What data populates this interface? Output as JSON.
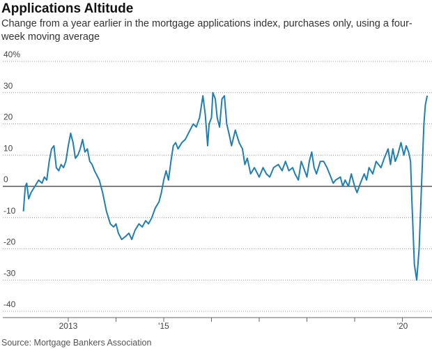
{
  "chart_data": {
    "type": "line",
    "title": "Applications Altitude",
    "subtitle": "Change from a year earlier in the mortgage applications index, purchases only, using a four-week moving average",
    "source": "Source: Mortgage Bankers Association",
    "x": [
      2012.06,
      2012.1,
      2012.13,
      2012.17,
      2012.22,
      2012.3,
      2012.38,
      2012.45,
      2012.5,
      2012.55,
      2012.6,
      2012.65,
      2012.7,
      2012.75,
      2012.8,
      2012.85,
      2012.9,
      2012.95,
      2013.0,
      2013.05,
      2013.1,
      2013.15,
      2013.2,
      2013.25,
      2013.3,
      2013.35,
      2013.4,
      2013.45,
      2013.5,
      2013.55,
      2013.65,
      2013.72,
      2013.8,
      2013.88,
      2013.95,
      2014.0,
      2014.05,
      2014.12,
      2014.2,
      2014.27,
      2014.33,
      2014.4,
      2014.48,
      2014.55,
      2014.62,
      2014.68,
      2014.75,
      2014.82,
      2014.9,
      2014.95,
      2015.0,
      2015.05,
      2015.1,
      2015.15,
      2015.2,
      2015.25,
      2015.3,
      2015.38,
      2015.45,
      2015.55,
      2015.62,
      2015.68,
      2015.75,
      2015.82,
      2015.87,
      2015.92,
      2015.95,
      2016.0,
      2016.03,
      2016.08,
      2016.12,
      2016.17,
      2016.22,
      2016.27,
      2016.32,
      2016.38,
      2016.42,
      2016.5,
      2016.58,
      2016.65,
      2016.7,
      2016.75,
      2016.82,
      2016.9,
      2017.0,
      2017.08,
      2017.15,
      2017.22,
      2017.3,
      2017.4,
      2017.48,
      2017.55,
      2017.62,
      2017.7,
      2017.75,
      2017.82,
      2017.88,
      2017.93,
      2018.0,
      2018.05,
      2018.1,
      2018.15,
      2018.2,
      2018.28,
      2018.35,
      2018.42,
      2018.5,
      2018.55,
      2018.6,
      2018.7,
      2018.75,
      2018.8,
      2018.87,
      2018.93,
      2019.0,
      2019.05,
      2019.12,
      2019.2,
      2019.25,
      2019.3,
      2019.38,
      2019.45,
      2019.5,
      2019.55,
      2019.62,
      2019.7,
      2019.75,
      2019.8,
      2019.85,
      2019.9,
      2019.97,
      2020.03,
      2020.08,
      2020.13,
      2020.17,
      2020.2,
      2020.25,
      2020.3,
      2020.35,
      2020.4,
      2020.45,
      2020.48,
      2020.52
    ],
    "series": [
      {
        "color": "#1f7fb0",
        "values": [
          -8,
          0,
          1,
          -4,
          -2,
          0,
          2,
          1,
          3,
          2,
          8,
          12,
          13,
          6,
          5,
          7,
          6,
          8,
          13,
          17,
          14,
          9,
          10,
          12,
          15,
          11,
          12,
          8,
          7,
          5,
          2,
          -2,
          -8,
          -12,
          -13,
          -12,
          -15,
          -17,
          -16,
          -15,
          -17,
          -14,
          -12,
          -13,
          -11,
          -12,
          -10,
          -7,
          -5,
          -2,
          2,
          5,
          2,
          8,
          13,
          14,
          12,
          14,
          15,
          18,
          20,
          19,
          22,
          29,
          23,
          13,
          20,
          22,
          30,
          28,
          22,
          19,
          28,
          29,
          20,
          16,
          13,
          18,
          14,
          12,
          7,
          9,
          4,
          6,
          3,
          6,
          4,
          3,
          6,
          7,
          5,
          8,
          5,
          6,
          4,
          2,
          8,
          6,
          3,
          8,
          11,
          6,
          4,
          8,
          8,
          6,
          3,
          1,
          2,
          3,
          0,
          2,
          0,
          4,
          0,
          -2,
          1,
          4,
          2,
          6,
          4,
          8,
          7,
          6,
          9,
          12,
          7,
          12,
          8,
          10,
          14,
          10,
          13,
          11,
          8,
          -5,
          -25,
          -30,
          -20,
          0,
          20,
          26,
          29
        ]
      }
    ],
    "xlim": [
      2011.57,
      2020.62
    ],
    "xticks": [
      {
        "value": 2013,
        "label": "2013"
      },
      {
        "value": 2014,
        "label": null
      },
      {
        "value": 2015,
        "label": "'15"
      },
      {
        "value": 2016,
        "label": null
      },
      {
        "value": 2017,
        "label": null
      },
      {
        "value": 2018,
        "label": null
      },
      {
        "value": 2019,
        "label": null
      },
      {
        "value": 2020,
        "label": "'20"
      }
    ],
    "ylim": [
      -40,
      40
    ],
    "yticks": [
      {
        "value": 40,
        "label": "40%"
      },
      30,
      20,
      10,
      0,
      -10,
      -20,
      -30,
      -40
    ],
    "grid": true
  }
}
